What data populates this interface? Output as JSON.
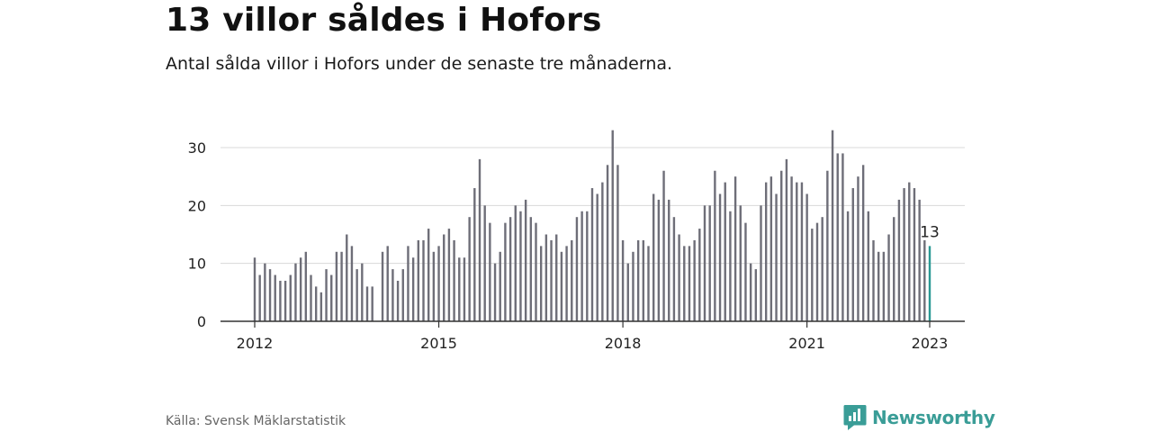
{
  "header": {
    "title": "13 villor såldes i Hofors",
    "subtitle": "Antal sålda villor i Hofors under de senaste tre månaderna."
  },
  "footer": {
    "source": "Källa: Svensk Mäklarstatistik",
    "brand": "Newsworthy",
    "brand_icon": "newsworthy-logo-icon"
  },
  "colors": {
    "bar": "#6e6e78",
    "highlight": "#2b9a94",
    "grid": "#d8d8d8",
    "axis": "#333333",
    "brand": "#3a9d97"
  },
  "chart_data": {
    "type": "bar",
    "x_type": "monthly",
    "x_start": "2012-01",
    "x_end": "2023-01",
    "xticks": [
      "2012",
      "2015",
      "2018",
      "2021",
      "2023"
    ],
    "yticks": [
      0,
      10,
      20,
      30
    ],
    "ylim": [
      0,
      35
    ],
    "grid": true,
    "highlight_last": true,
    "annotation": {
      "text": "13",
      "target": "2023-01"
    },
    "values": [
      11,
      8,
      10,
      9,
      8,
      7,
      7,
      8,
      10,
      11,
      12,
      8,
      6,
      5,
      9,
      8,
      12,
      12,
      15,
      13,
      9,
      10,
      6,
      6,
      null,
      12,
      13,
      9,
      7,
      9,
      13,
      11,
      14,
      14,
      16,
      12,
      13,
      15,
      16,
      14,
      11,
      11,
      18,
      23,
      28,
      20,
      17,
      10,
      12,
      17,
      18,
      20,
      19,
      21,
      18,
      17,
      13,
      15,
      14,
      15,
      12,
      13,
      14,
      18,
      19,
      19,
      23,
      22,
      24,
      27,
      33,
      27,
      14,
      10,
      12,
      14,
      14,
      13,
      22,
      21,
      26,
      21,
      18,
      15,
      13,
      13,
      14,
      16,
      20,
      20,
      26,
      22,
      24,
      19,
      25,
      20,
      17,
      10,
      9,
      20,
      24,
      25,
      22,
      26,
      28,
      25,
      24,
      24,
      22,
      16,
      17,
      18,
      26,
      33,
      29,
      29,
      19,
      23,
      25,
      27,
      19,
      14,
      12,
      12,
      15,
      18,
      21,
      23,
      24,
      23,
      21,
      14,
      13
    ]
  }
}
